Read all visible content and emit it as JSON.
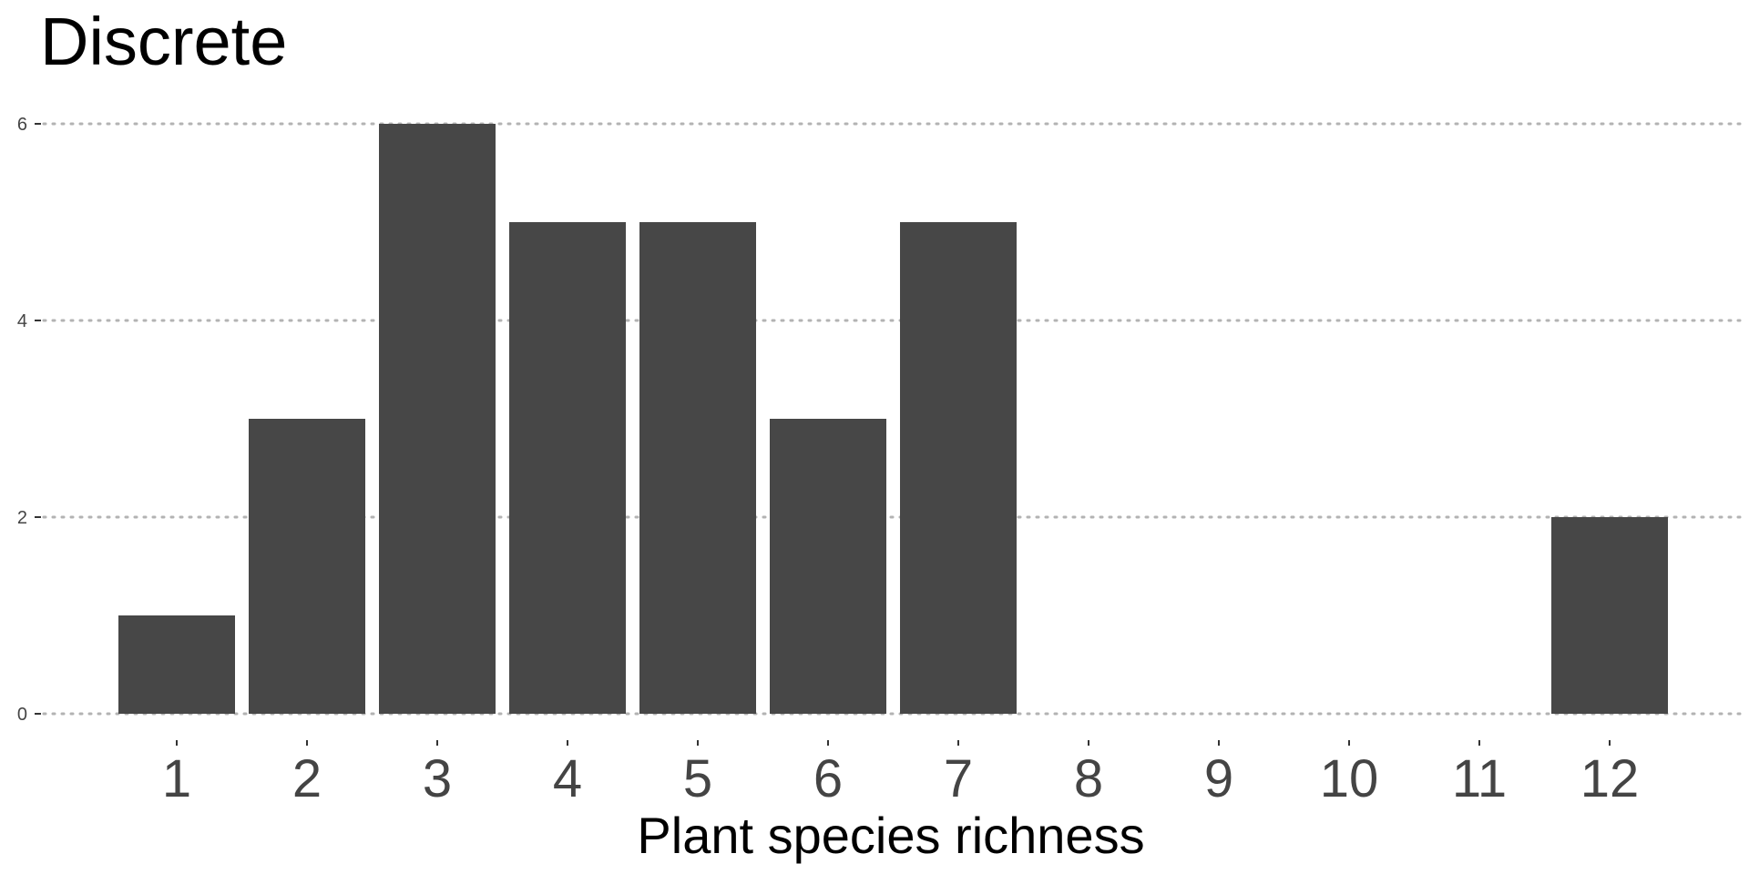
{
  "chart_data": {
    "type": "bar",
    "title": "Discrete",
    "xlabel": "Plant species richness",
    "ylabel": "",
    "categories": [
      "1",
      "2",
      "3",
      "4",
      "5",
      "6",
      "7",
      "8",
      "9",
      "10",
      "11",
      "12"
    ],
    "values": [
      1,
      3,
      6,
      5,
      5,
      3,
      5,
      0,
      0,
      0,
      0,
      2
    ],
    "ylim": [
      0,
      6
    ],
    "yticks": [
      "0",
      "2",
      "4",
      "6"
    ],
    "grid": true,
    "grid_axis": "y",
    "legend": "none",
    "bar_color": "#474747",
    "grid_color": "#b3b3b3",
    "text_color": "#444444"
  }
}
